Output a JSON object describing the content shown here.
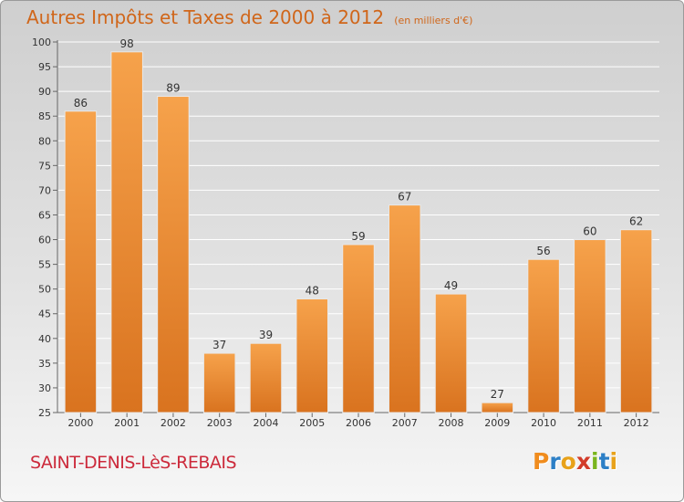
{
  "chart_data": {
    "type": "bar",
    "title": "Autres Impôts et Taxes de 2000 à 2012",
    "subtitle": "(en milliers d'€)",
    "categories": [
      "2000",
      "2001",
      "2002",
      "2003",
      "2004",
      "2005",
      "2006",
      "2007",
      "2008",
      "2009",
      "2010",
      "2011",
      "2012"
    ],
    "values": [
      86,
      98,
      89,
      37,
      39,
      48,
      59,
      67,
      49,
      27,
      56,
      60,
      62
    ],
    "ylim": [
      25,
      100
    ],
    "yticks": [
      25,
      30,
      35,
      40,
      45,
      50,
      55,
      60,
      65,
      70,
      75,
      80,
      85,
      90,
      95,
      100
    ],
    "grid": true,
    "xlabel": "",
    "ylabel": ""
  },
  "footer": {
    "commune": "SAINT-DENIS-LèS-REBAIS",
    "brand": "Proxiti"
  },
  "colors": {
    "bar_top": "#f6a24b",
    "bar_bottom": "#d9731f",
    "title": "#d0661a",
    "commune": "#cc2a3b",
    "brand_letters": [
      "#f08c1e",
      "#2c7fc6",
      "#e8a21a",
      "#d23c2a",
      "#7ab51d",
      "#2c7fc6",
      "#e8a21a"
    ]
  }
}
